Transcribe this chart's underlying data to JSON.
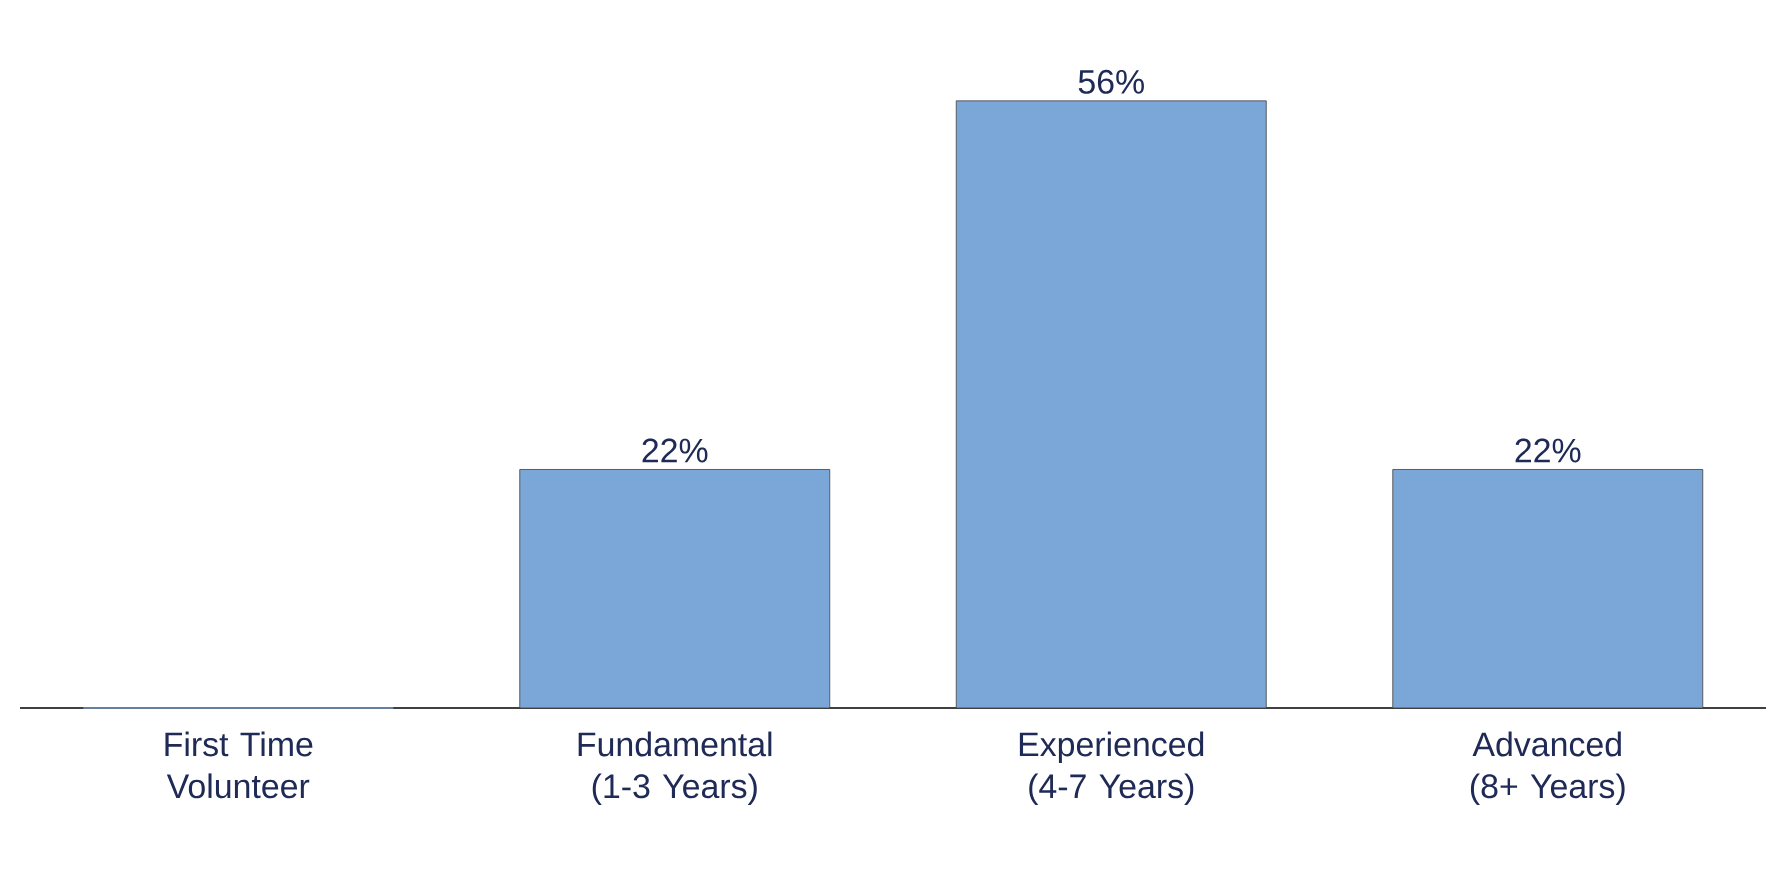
{
  "chart_data": {
    "type": "bar",
    "categories": [
      "First Time Volunteer",
      "Fundamental (1-3 Years)",
      "Experienced (4-7 Years)",
      "Advanced (8+ Years)"
    ],
    "values": [
      0,
      22,
      56,
      22
    ],
    "value_labels": [
      null,
      "22%",
      "56%",
      "22%"
    ],
    "color": "#7ba7d8"
  }
}
